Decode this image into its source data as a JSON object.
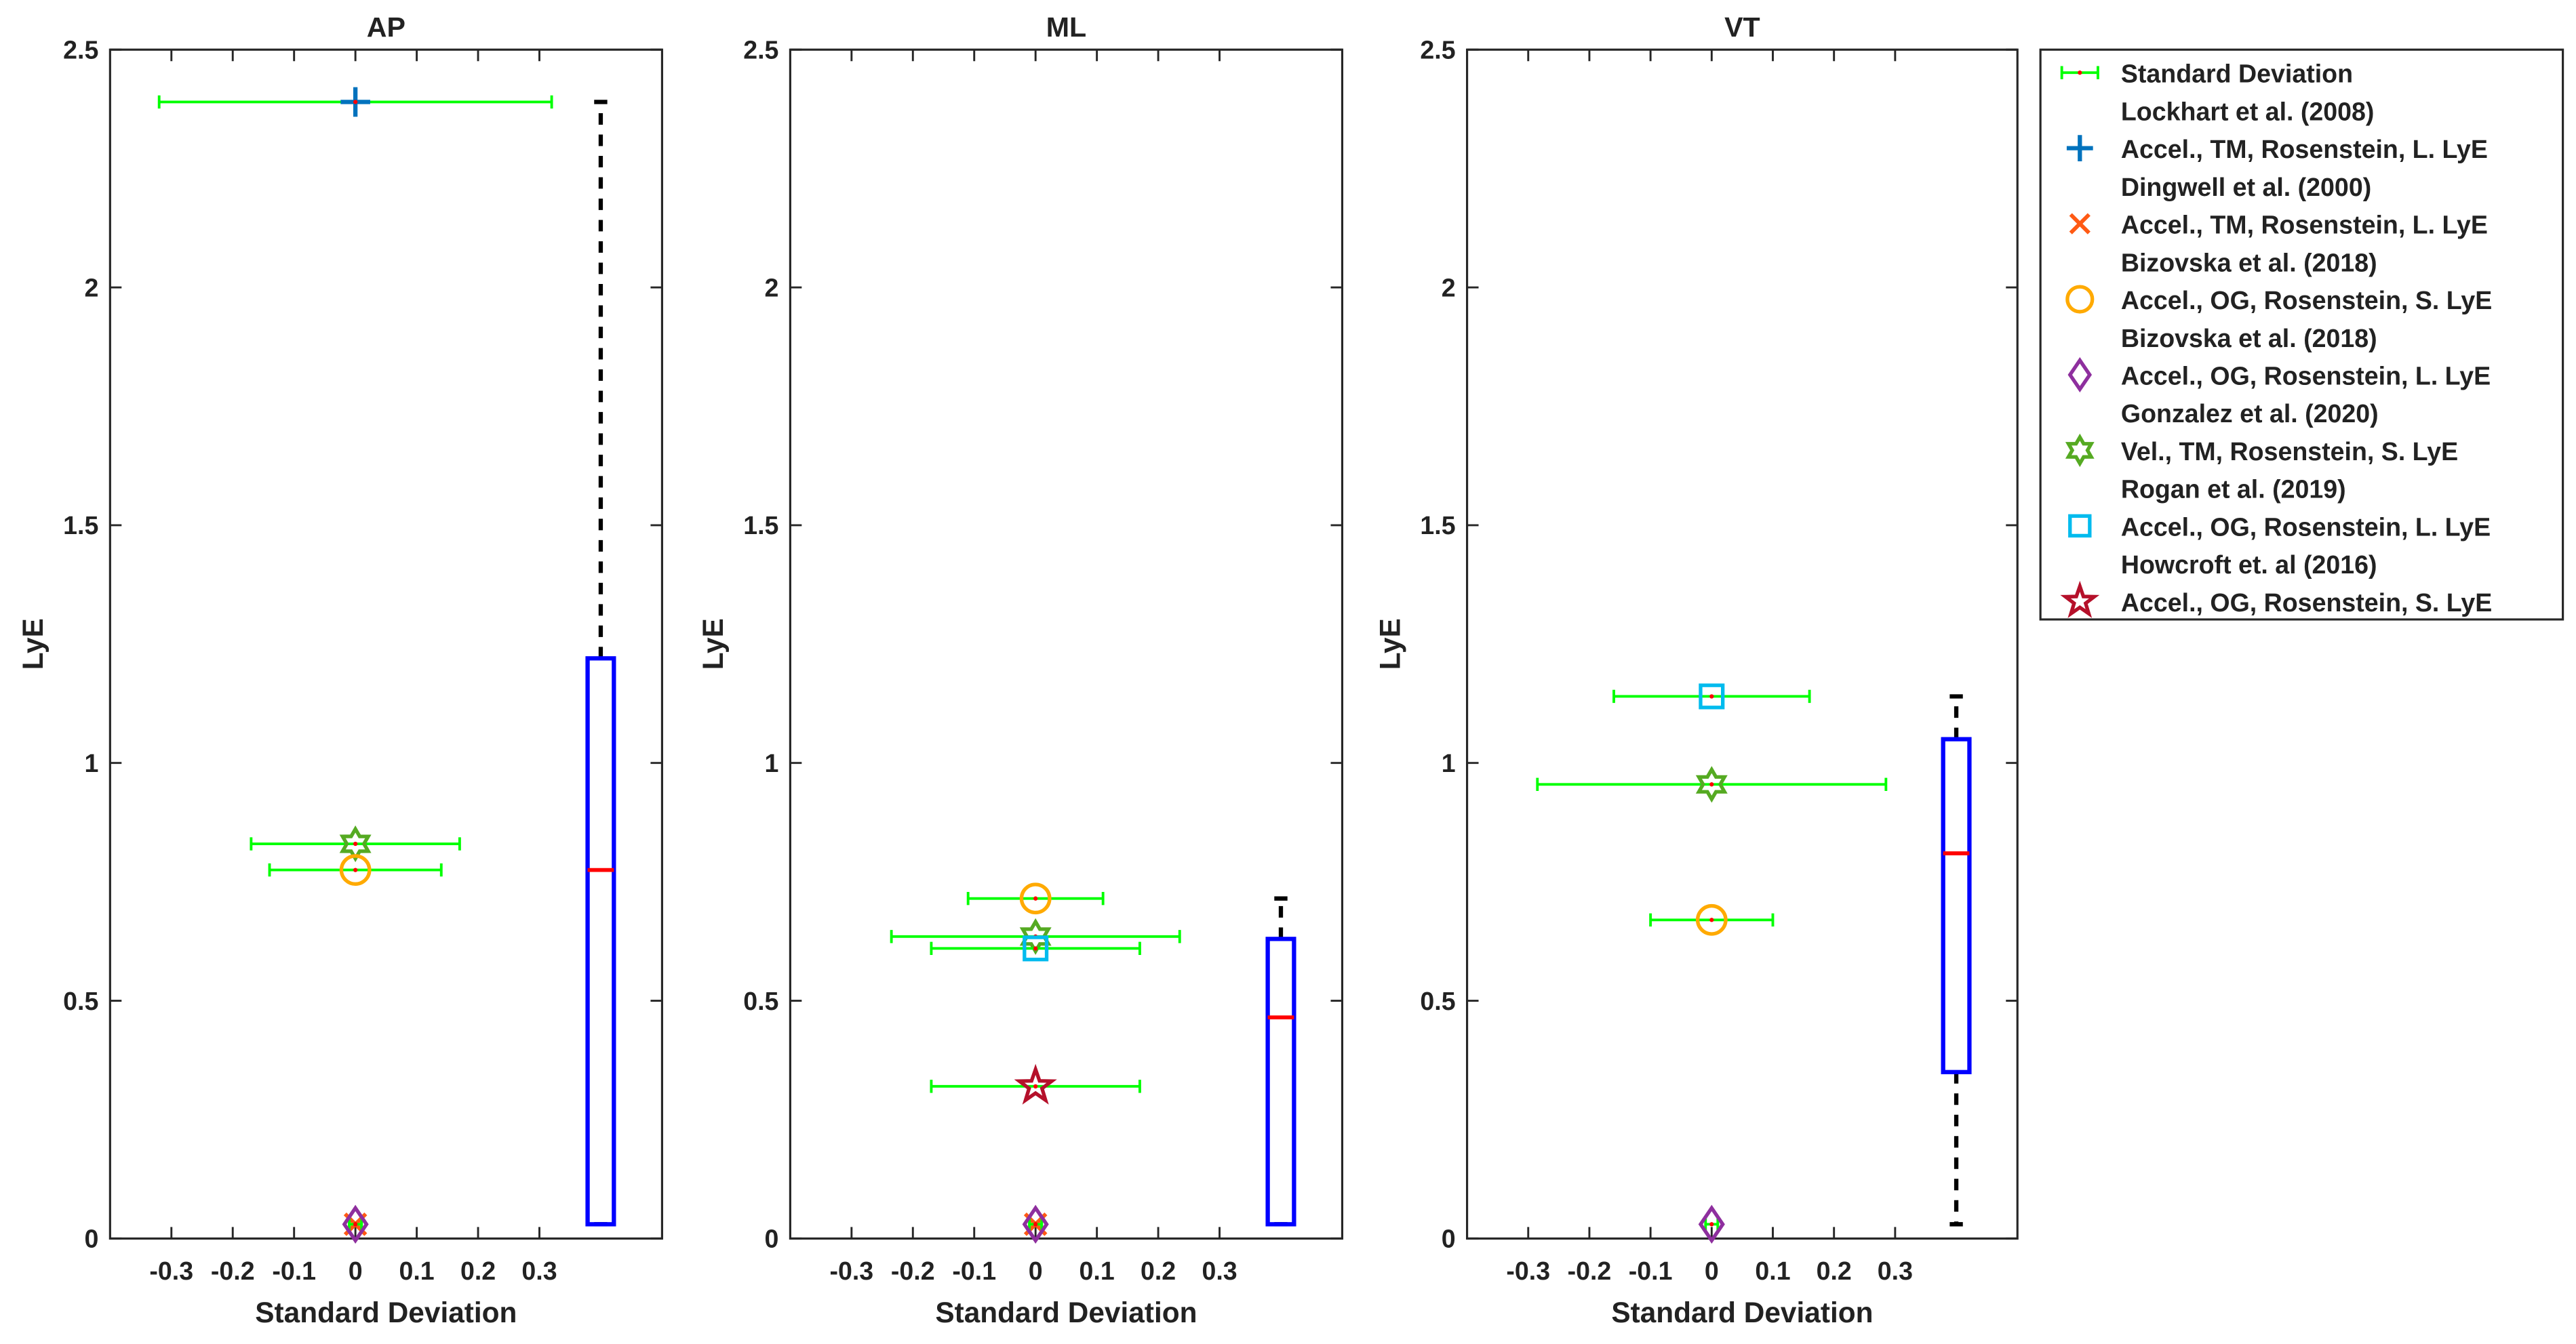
{
  "chart_data": {
    "type": "scatter",
    "ylabel": "LyE",
    "xlabel": "Standard Deviation",
    "xlim": [
      -0.4,
      0.5
    ],
    "ylim": [
      0,
      2.5
    ],
    "xticks": [
      -0.3,
      -0.2,
      -0.1,
      0,
      0.1,
      0.2,
      0.3
    ],
    "xtick_labels": [
      "-0.3",
      "-0.2",
      "-0.1",
      "0",
      "0.1",
      "0.2",
      "0.3"
    ],
    "yticks": [
      0,
      0.5,
      1,
      1.5,
      2,
      2.5
    ],
    "ytick_labels": [
      "0",
      "0.5",
      "1",
      "1.5",
      "2",
      "2.5"
    ],
    "colors": {
      "errorbar": "#00ff00",
      "center": "#ff0000",
      "box": "#0000ff",
      "median": "#ff0000",
      "whisker": "#000000"
    },
    "legend": {
      "placement": "outside-right",
      "entries": [
        {
          "marker": "errorbar",
          "color": "#00ff00",
          "line1": "Standard Deviation",
          "line2": ""
        },
        {
          "marker": "plus",
          "color": "#0072bd",
          "line1": "Lockhart et al. (2008)",
          "line2": "Accel., TM, Rosenstein, L. LyE"
        },
        {
          "marker": "x",
          "color": "#ff5a14",
          "line1": "Dingwell et al. (2000)",
          "line2": "Accel., TM, Rosenstein, L. LyE"
        },
        {
          "marker": "circle",
          "color": "#ffaa00",
          "line1": "Bizovska et al. (2018)",
          "line2": "Accel., OG, Rosenstein, S. LyE"
        },
        {
          "marker": "diamond",
          "color": "#8e2f9e",
          "line1": "Bizovska et al. (2018)",
          "line2": "Accel., OG, Rosenstein, L. LyE"
        },
        {
          "marker": "hexagram",
          "color": "#55aa22",
          "line1": "Gonzalez et al. (2020)",
          "line2": "Vel., TM, Rosenstein, S. LyE"
        },
        {
          "marker": "square",
          "color": "#00bbee",
          "line1": "Rogan et al. (2019)",
          "line2": "Accel., OG, Rosenstein, L. LyE"
        },
        {
          "marker": "pentagram",
          "color": "#b5102a",
          "line1": "Howcroft et. al (2016)",
          "line2": "Accel., OG, Rosenstein, S. LyE"
        }
      ]
    },
    "panels": [
      {
        "title": "AP",
        "points": [
          {
            "marker": "plus",
            "lye": 2.39,
            "sd": 0.32
          },
          {
            "marker": "hexagram",
            "lye": 0.83,
            "sd": 0.17
          },
          {
            "marker": "circle",
            "lye": 0.775,
            "sd": 0.14
          },
          {
            "marker": "x",
            "lye": 0.03,
            "sd": 0.01
          },
          {
            "marker": "diamond",
            "lye": 0.03,
            "sd": 0.01
          }
        ],
        "box": {
          "x": 0.4,
          "min": 0.03,
          "q1": 0.03,
          "median": 0.775,
          "q3": 1.22,
          "max": 2.39
        }
      },
      {
        "title": "ML",
        "points": [
          {
            "marker": "circle",
            "lye": 0.715,
            "sd": 0.11
          },
          {
            "marker": "hexagram",
            "lye": 0.635,
            "sd": 0.235
          },
          {
            "marker": "square",
            "lye": 0.61,
            "sd": 0.17
          },
          {
            "marker": "pentagram",
            "lye": 0.32,
            "sd": 0.17
          },
          {
            "marker": "x",
            "lye": 0.03,
            "sd": 0.01
          },
          {
            "marker": "diamond",
            "lye": 0.03,
            "sd": 0.01
          }
        ],
        "box": {
          "x": 0.4,
          "min": 0.03,
          "q1": 0.03,
          "median": 0.465,
          "q3": 0.63,
          "max": 0.715
        }
      },
      {
        "title": "VT",
        "points": [
          {
            "marker": "square",
            "lye": 1.14,
            "sd": 0.16
          },
          {
            "marker": "hexagram",
            "lye": 0.955,
            "sd": 0.285
          },
          {
            "marker": "circle",
            "lye": 0.67,
            "sd": 0.1
          },
          {
            "marker": "diamond",
            "lye": 0.03,
            "sd": 0.01
          }
        ],
        "box": {
          "x": 0.4,
          "min": 0.03,
          "q1": 0.35,
          "median": 0.81,
          "q3": 1.05,
          "max": 1.14
        }
      }
    ]
  }
}
